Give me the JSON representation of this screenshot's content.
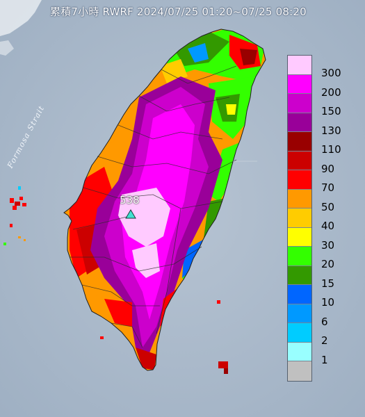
{
  "title": "累積7小時 RWRF 2024/07/25 01:20~07/25 08:20",
  "map": {
    "sea_label": "Formosa Strait",
    "peak_value": "538",
    "peak_marker": "triangle-marker",
    "land_color": "#e8eef3",
    "sea_color": "#a9b8c9"
  },
  "legend": {
    "unit_levels": [
      {
        "label": "300",
        "color": "#ffcaff"
      },
      {
        "label": "200",
        "color": "#ff00ff"
      },
      {
        "label": "150",
        "color": "#cc00cc"
      },
      {
        "label": "130",
        "color": "#990099"
      },
      {
        "label": "110",
        "color": "#990000"
      },
      {
        "label": "90",
        "color": "#cc0000"
      },
      {
        "label": "70",
        "color": "#ff0000"
      },
      {
        "label": "50",
        "color": "#ff9900"
      },
      {
        "label": "40",
        "color": "#ffcc00"
      },
      {
        "label": "30",
        "color": "#ffff00"
      },
      {
        "label": "20",
        "color": "#33ff00"
      },
      {
        "label": "15",
        "color": "#339900"
      },
      {
        "label": "10",
        "color": "#0066ff"
      },
      {
        "label": "6",
        "color": "#0099ff"
      },
      {
        "label": "2",
        "color": "#00ccff"
      },
      {
        "label": "1",
        "color": "#99ffff"
      },
      {
        "label": "",
        "color": "#c0c0c0"
      }
    ]
  }
}
